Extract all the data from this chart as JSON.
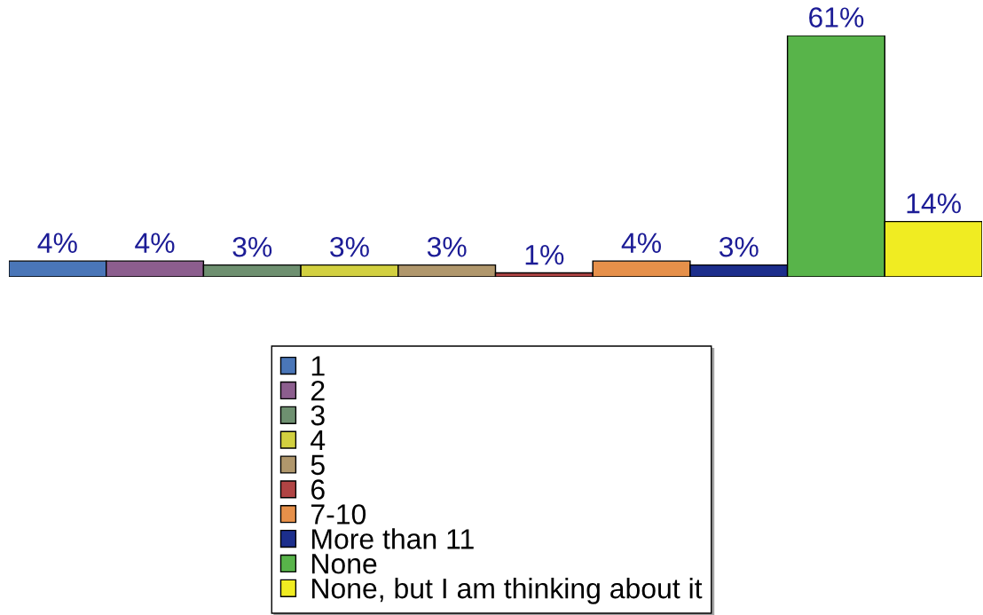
{
  "chart_data": {
    "type": "bar",
    "categories": [
      null
    ],
    "series": [
      {
        "name": "1",
        "color": "#4a76b8",
        "values": [
          4
        ],
        "value_labels": [
          "4%"
        ]
      },
      {
        "name": "2",
        "color": "#8c5e8e",
        "values": [
          4
        ],
        "value_labels": [
          "4%"
        ]
      },
      {
        "name": "3",
        "color": "#6e9070",
        "values": [
          3
        ],
        "value_labels": [
          "3%"
        ]
      },
      {
        "name": "4",
        "color": "#d2d040",
        "values": [
          3
        ],
        "value_labels": [
          "3%"
        ]
      },
      {
        "name": "5",
        "color": "#b0976c",
        "values": [
          3
        ],
        "value_labels": [
          "3%"
        ]
      },
      {
        "name": "6",
        "color": "#b04444",
        "values": [
          1
        ],
        "value_labels": [
          "1%"
        ]
      },
      {
        "name": "7-10",
        "color": "#e6904a",
        "values": [
          4
        ],
        "value_labels": [
          "4%"
        ]
      },
      {
        "name": "More than 11",
        "color": "#1c2e8c",
        "values": [
          3
        ],
        "value_labels": [
          "3%"
        ]
      },
      {
        "name": "None",
        "color": "#58b44a",
        "values": [
          61
        ],
        "value_labels": [
          "61%"
        ]
      },
      {
        "name": "None, but I am thinking about it",
        "color": "#f0ec22",
        "values": [
          14
        ],
        "value_labels": [
          "14%"
        ]
      }
    ],
    "legend": "bottom"
  }
}
